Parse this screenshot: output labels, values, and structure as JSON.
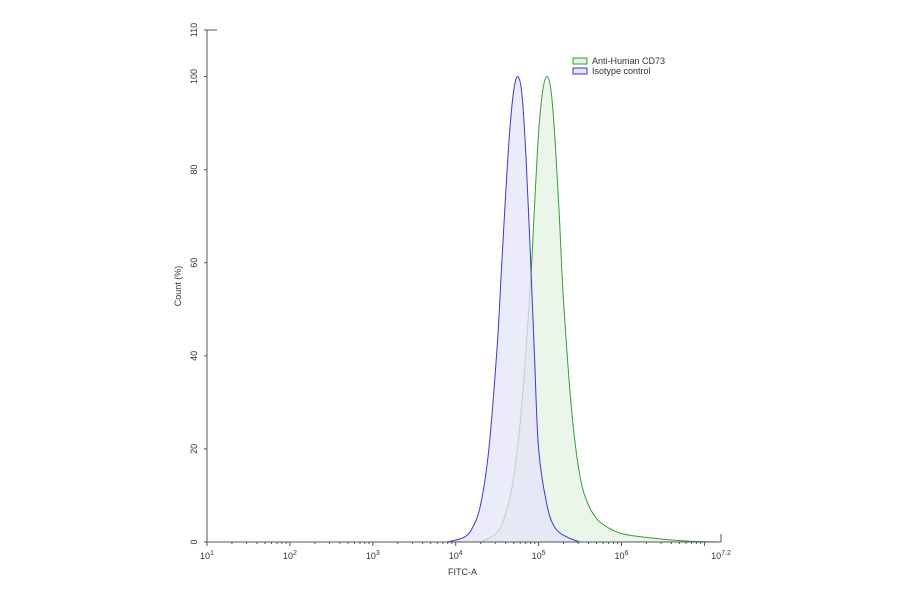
{
  "chart_data": {
    "type": "area",
    "title": "",
    "xlabel": "FITC-A",
    "ylabel": "Count (%)",
    "xscale": "log",
    "xlim": [
      1,
      7.2
    ],
    "ylim": [
      0,
      110
    ],
    "x_ticks": [
      {
        "exp": "1",
        "pos": 1
      },
      {
        "exp": "2",
        "pos": 2
      },
      {
        "exp": "3",
        "pos": 3
      },
      {
        "exp": "4",
        "pos": 4
      },
      {
        "exp": "5",
        "pos": 5
      },
      {
        "exp": "6",
        "pos": 6
      },
      {
        "exp": "7.2",
        "pos": 7.2
      }
    ],
    "y_ticks": [
      0,
      20,
      40,
      60,
      80,
      100,
      110
    ],
    "legend_position": "top-right",
    "series": [
      {
        "name": "Anti-Human CD73",
        "color": "#3a9a3a",
        "fill": "#e3f3e1",
        "log_x": [
          4.3,
          4.5,
          4.6,
          4.7,
          4.8,
          4.9,
          4.95,
          5.0,
          5.05,
          5.1,
          5.15,
          5.2,
          5.25,
          5.3,
          5.4,
          5.5,
          5.6,
          5.7,
          5.8,
          5.9,
          6.0,
          6.2,
          6.5,
          6.8,
          7.2
        ],
        "values": [
          0,
          2,
          6,
          14,
          30,
          55,
          72,
          88,
          97,
          100,
          97,
          86,
          70,
          52,
          28,
          14,
          8,
          5,
          3.5,
          2.5,
          1.8,
          1.2,
          0.6,
          0.2,
          0
        ]
      },
      {
        "name": "Isotype control",
        "color": "#3a3acc",
        "fill": "#e4e4f8",
        "log_x": [
          3.9,
          4.1,
          4.2,
          4.3,
          4.4,
          4.5,
          4.55,
          4.6,
          4.65,
          4.7,
          4.75,
          4.8,
          4.85,
          4.9,
          4.95,
          5.0,
          5.1,
          5.2,
          5.35,
          5.5
        ],
        "values": [
          0,
          1,
          3,
          8,
          20,
          42,
          58,
          74,
          88,
          97,
          100,
          96,
          82,
          62,
          40,
          20,
          8,
          3,
          1,
          0
        ]
      }
    ]
  }
}
